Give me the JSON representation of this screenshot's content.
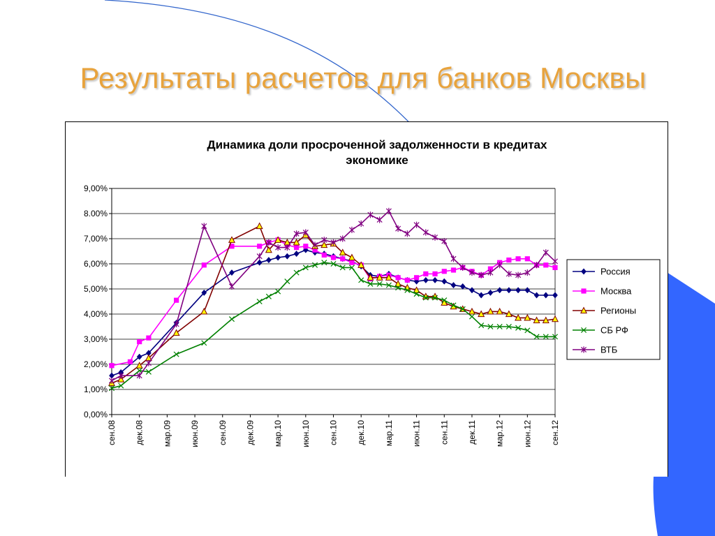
{
  "slide": {
    "title": "Результаты расчетов для банков Москвы"
  },
  "colors": {
    "title": "#e8a33d",
    "accent_blue": "#3366ff",
    "deco_line": "#3366cc"
  },
  "chart_data": {
    "type": "line",
    "title_lines": [
      "Динамика доли просроченной задолженности в кредитах",
      "экономике"
    ],
    "xlabel": "",
    "ylabel": "",
    "ylim": [
      0,
      9
    ],
    "y_ticks": [
      "0,00%",
      "1,00%",
      "2,00%",
      "3,00%",
      "4,00%",
      "5,00%",
      "6,00%",
      "7,00%",
      "8.00%",
      "9,00%"
    ],
    "x_range": [
      "2008-09",
      "2012-09"
    ],
    "x_ticks": [
      {
        "date": "2008-09",
        "label": "сен.08"
      },
      {
        "date": "2008-12",
        "label": "дек.08"
      },
      {
        "date": "2009-03",
        "label": "мар.09"
      },
      {
        "date": "2009-06",
        "label": "июн.09"
      },
      {
        "date": "2009-09",
        "label": "сен.09"
      },
      {
        "date": "2009-12",
        "label": "дек.09"
      },
      {
        "date": "2010-03",
        "label": "мар.10"
      },
      {
        "date": "2010-06",
        "label": "июн.10"
      },
      {
        "date": "2010-09",
        "label": "сен.10"
      },
      {
        "date": "2010-12",
        "label": "дек.10"
      },
      {
        "date": "2011-03",
        "label": "мар.11"
      },
      {
        "date": "2011-06",
        "label": "июн.11"
      },
      {
        "date": "2011-09",
        "label": "сен.11"
      },
      {
        "date": "2011-12",
        "label": "дек.11"
      },
      {
        "date": "2012-03",
        "label": "мар.12"
      },
      {
        "date": "2012-06",
        "label": "июн.12"
      },
      {
        "date": "2012-09",
        "label": "сен.12"
      }
    ],
    "grid": "horizontal",
    "legend_position": "right",
    "series": [
      {
        "name": "Россия",
        "color": "#000080",
        "marker": "diamond",
        "points": [
          [
            "2008-09",
            1.55
          ],
          [
            "2008-10",
            1.68
          ],
          [
            "2008-12",
            2.3
          ],
          [
            "2009-01",
            2.45
          ],
          [
            "2009-04",
            3.65
          ],
          [
            "2009-07",
            4.85
          ],
          [
            "2009-10",
            5.65
          ],
          [
            "2010-01",
            6.05
          ],
          [
            "2010-02",
            6.15
          ],
          [
            "2010-03",
            6.25
          ],
          [
            "2010-04",
            6.3
          ],
          [
            "2010-05",
            6.4
          ],
          [
            "2010-06",
            6.55
          ],
          [
            "2010-07",
            6.45
          ],
          [
            "2010-08",
            6.4
          ],
          [
            "2010-09",
            6.3
          ],
          [
            "2010-10",
            6.2
          ],
          [
            "2010-11",
            6.1
          ],
          [
            "2010-12",
            5.9
          ],
          [
            "2011-01",
            5.55
          ],
          [
            "2011-02",
            5.5
          ],
          [
            "2011-03",
            5.6
          ],
          [
            "2011-04",
            5.45
          ],
          [
            "2011-05",
            5.35
          ],
          [
            "2011-06",
            5.3
          ],
          [
            "2011-07",
            5.35
          ],
          [
            "2011-08",
            5.35
          ],
          [
            "2011-09",
            5.3
          ],
          [
            "2011-10",
            5.15
          ],
          [
            "2011-11",
            5.1
          ],
          [
            "2011-12",
            4.95
          ],
          [
            "2012-01",
            4.75
          ],
          [
            "2012-02",
            4.85
          ],
          [
            "2012-03",
            4.95
          ],
          [
            "2012-04",
            4.95
          ],
          [
            "2012-05",
            4.95
          ],
          [
            "2012-06",
            4.95
          ],
          [
            "2012-07",
            4.75
          ],
          [
            "2012-08",
            4.75
          ],
          [
            "2012-09",
            4.75
          ]
        ]
      },
      {
        "name": "Москва",
        "color": "#ff00ff",
        "marker": "square",
        "points": [
          [
            "2008-09",
            1.95
          ],
          [
            "2008-11",
            2.1
          ],
          [
            "2008-12",
            2.9
          ],
          [
            "2009-01",
            3.05
          ],
          [
            "2009-04",
            4.55
          ],
          [
            "2009-07",
            5.95
          ],
          [
            "2009-10",
            6.7
          ],
          [
            "2010-01",
            6.7
          ],
          [
            "2010-02",
            6.85
          ],
          [
            "2010-03",
            6.95
          ],
          [
            "2010-04",
            6.75
          ],
          [
            "2010-05",
            6.65
          ],
          [
            "2010-06",
            6.7
          ],
          [
            "2010-07",
            6.55
          ],
          [
            "2010-08",
            6.35
          ],
          [
            "2010-09",
            6.25
          ],
          [
            "2010-10",
            6.2
          ],
          [
            "2010-11",
            6.05
          ],
          [
            "2010-12",
            5.95
          ],
          [
            "2011-01",
            5.4
          ],
          [
            "2011-02",
            5.5
          ],
          [
            "2011-03",
            5.55
          ],
          [
            "2011-04",
            5.45
          ],
          [
            "2011-05",
            5.35
          ],
          [
            "2011-06",
            5.45
          ],
          [
            "2011-07",
            5.6
          ],
          [
            "2011-08",
            5.6
          ],
          [
            "2011-09",
            5.7
          ],
          [
            "2011-10",
            5.75
          ],
          [
            "2011-11",
            5.85
          ],
          [
            "2011-12",
            5.7
          ],
          [
            "2012-01",
            5.55
          ],
          [
            "2012-02",
            5.8
          ],
          [
            "2012-03",
            6.05
          ],
          [
            "2012-04",
            6.15
          ],
          [
            "2012-05",
            6.2
          ],
          [
            "2012-06",
            6.2
          ],
          [
            "2012-07",
            5.95
          ],
          [
            "2012-08",
            5.95
          ],
          [
            "2012-09",
            5.85
          ]
        ]
      },
      {
        "name": "Регионы",
        "color": "#800000",
        "marker": "triangle",
        "points": [
          [
            "2008-09",
            1.25
          ],
          [
            "2008-10",
            1.4
          ],
          [
            "2008-12",
            1.95
          ],
          [
            "2009-01",
            2.25
          ],
          [
            "2009-04",
            3.25
          ],
          [
            "2009-07",
            4.1
          ],
          [
            "2009-10",
            6.95
          ],
          [
            "2010-01",
            7.5
          ],
          [
            "2010-02",
            6.55
          ],
          [
            "2010-03",
            6.95
          ],
          [
            "2010-04",
            6.85
          ],
          [
            "2010-05",
            6.85
          ],
          [
            "2010-06",
            7.15
          ],
          [
            "2010-07",
            6.7
          ],
          [
            "2010-08",
            6.75
          ],
          [
            "2010-09",
            6.8
          ],
          [
            "2010-10",
            6.45
          ],
          [
            "2010-11",
            6.25
          ],
          [
            "2010-12",
            5.95
          ],
          [
            "2011-01",
            5.45
          ],
          [
            "2011-02",
            5.45
          ],
          [
            "2011-03",
            5.45
          ],
          [
            "2011-04",
            5.2
          ],
          [
            "2011-05",
            5.05
          ],
          [
            "2011-06",
            4.95
          ],
          [
            "2011-07",
            4.7
          ],
          [
            "2011-08",
            4.7
          ],
          [
            "2011-09",
            4.45
          ],
          [
            "2011-10",
            4.3
          ],
          [
            "2011-11",
            4.2
          ],
          [
            "2011-12",
            4.1
          ],
          [
            "2012-01",
            4.0
          ],
          [
            "2012-02",
            4.1
          ],
          [
            "2012-03",
            4.1
          ],
          [
            "2012-04",
            4.0
          ],
          [
            "2012-05",
            3.85
          ],
          [
            "2012-06",
            3.85
          ],
          [
            "2012-07",
            3.75
          ],
          [
            "2012-08",
            3.75
          ],
          [
            "2012-09",
            3.8
          ]
        ]
      },
      {
        "name": "СБ РФ",
        "color": "#008000",
        "marker": "x",
        "points": [
          [
            "2008-09",
            1.05
          ],
          [
            "2008-10",
            1.15
          ],
          [
            "2008-12",
            1.75
          ],
          [
            "2009-01",
            1.7
          ],
          [
            "2009-04",
            2.4
          ],
          [
            "2009-07",
            2.85
          ],
          [
            "2009-10",
            3.8
          ],
          [
            "2010-01",
            4.5
          ],
          [
            "2010-02",
            4.7
          ],
          [
            "2010-03",
            4.9
          ],
          [
            "2010-04",
            5.3
          ],
          [
            "2010-05",
            5.65
          ],
          [
            "2010-06",
            5.85
          ],
          [
            "2010-07",
            5.95
          ],
          [
            "2010-08",
            6.05
          ],
          [
            "2010-09",
            6.0
          ],
          [
            "2010-10",
            5.85
          ],
          [
            "2010-11",
            5.85
          ],
          [
            "2010-12",
            5.35
          ],
          [
            "2011-01",
            5.2
          ],
          [
            "2011-02",
            5.2
          ],
          [
            "2011-03",
            5.15
          ],
          [
            "2011-04",
            5.05
          ],
          [
            "2011-05",
            4.95
          ],
          [
            "2011-06",
            4.8
          ],
          [
            "2011-07",
            4.65
          ],
          [
            "2011-08",
            4.65
          ],
          [
            "2011-09",
            4.55
          ],
          [
            "2011-10",
            4.35
          ],
          [
            "2011-11",
            4.2
          ],
          [
            "2011-12",
            3.9
          ],
          [
            "2012-01",
            3.55
          ],
          [
            "2012-02",
            3.5
          ],
          [
            "2012-03",
            3.5
          ],
          [
            "2012-04",
            3.5
          ],
          [
            "2012-05",
            3.45
          ],
          [
            "2012-06",
            3.35
          ],
          [
            "2012-07",
            3.1
          ],
          [
            "2012-08",
            3.1
          ],
          [
            "2012-09",
            3.1
          ]
        ]
      },
      {
        "name": "ВТБ",
        "color": "#800080",
        "marker": "asterisk",
        "points": [
          [
            "2008-09",
            1.35
          ],
          [
            "2008-10",
            1.55
          ],
          [
            "2008-12",
            1.55
          ],
          [
            "2009-01",
            2.05
          ],
          [
            "2009-04",
            3.6
          ],
          [
            "2009-07",
            7.5
          ],
          [
            "2009-10",
            5.1
          ],
          [
            "2010-01",
            6.3
          ],
          [
            "2010-02",
            6.85
          ],
          [
            "2010-03",
            6.65
          ],
          [
            "2010-04",
            6.65
          ],
          [
            "2010-05",
            7.2
          ],
          [
            "2010-06",
            7.25
          ],
          [
            "2010-07",
            6.75
          ],
          [
            "2010-08",
            6.95
          ],
          [
            "2010-09",
            6.85
          ],
          [
            "2010-10",
            7.0
          ],
          [
            "2010-11",
            7.35
          ],
          [
            "2010-12",
            7.6
          ],
          [
            "2011-01",
            7.95
          ],
          [
            "2011-02",
            7.75
          ],
          [
            "2011-03",
            8.1
          ],
          [
            "2011-04",
            7.4
          ],
          [
            "2011-05",
            7.2
          ],
          [
            "2011-06",
            7.55
          ],
          [
            "2011-07",
            7.25
          ],
          [
            "2011-08",
            7.05
          ],
          [
            "2011-09",
            6.9
          ],
          [
            "2011-10",
            6.2
          ],
          [
            "2011-11",
            5.85
          ],
          [
            "2011-12",
            5.65
          ],
          [
            "2012-01",
            5.55
          ],
          [
            "2012-02",
            5.65
          ],
          [
            "2012-03",
            5.95
          ],
          [
            "2012-04",
            5.6
          ],
          [
            "2012-05",
            5.55
          ],
          [
            "2012-06",
            5.65
          ],
          [
            "2012-07",
            5.95
          ],
          [
            "2012-08",
            6.45
          ],
          [
            "2012-09",
            6.1
          ]
        ]
      }
    ]
  }
}
